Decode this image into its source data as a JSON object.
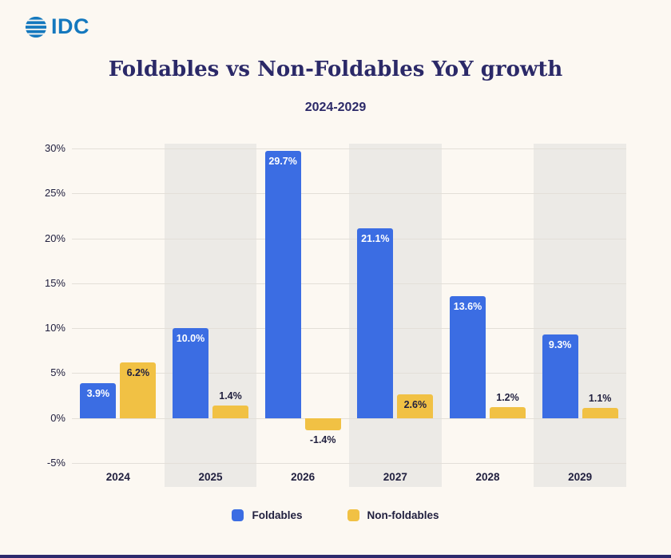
{
  "brand": {
    "logo_text": "IDC"
  },
  "chart_data": {
    "type": "bar",
    "title": "Foldables vs Non-Foldables YoY growth",
    "subtitle": "2024-2029",
    "categories": [
      "2024",
      "2025",
      "2026",
      "2027",
      "2028",
      "2029"
    ],
    "series": [
      {
        "name": "Foldables",
        "color": "#3B6DE3",
        "values": [
          3.9,
          10.0,
          29.7,
          21.1,
          13.6,
          9.3
        ],
        "labels": [
          "3.9%",
          "10.0%",
          "29.7%",
          "21.1%",
          "13.6%",
          "9.3%"
        ]
      },
      {
        "name": "Non-foldables",
        "color": "#F1C144",
        "values": [
          6.2,
          1.4,
          -1.4,
          2.6,
          1.2,
          1.1
        ],
        "labels": [
          "6.2%",
          "1.4%",
          "-1.4%",
          "2.6%",
          "1.2%",
          "1.1%"
        ]
      }
    ],
    "ylim": [
      -5,
      30
    ],
    "y_ticks": [
      30,
      25,
      20,
      15,
      10,
      5,
      0,
      -5
    ],
    "y_tick_labels": [
      "30%",
      "25%",
      "20%",
      "15%",
      "10%",
      "5%",
      "0%",
      "-5%"
    ],
    "xlabel": "",
    "ylabel": "",
    "grid": true,
    "legend_position": "bottom",
    "colors": {
      "background": "#FCF8F2",
      "band": "#ECEAE6",
      "gridline": "#E3DFD8",
      "title": "#2B2968",
      "text": "#21203F",
      "logo_blue": "#1478BE",
      "footer_bar": "#2D2A6E"
    }
  }
}
